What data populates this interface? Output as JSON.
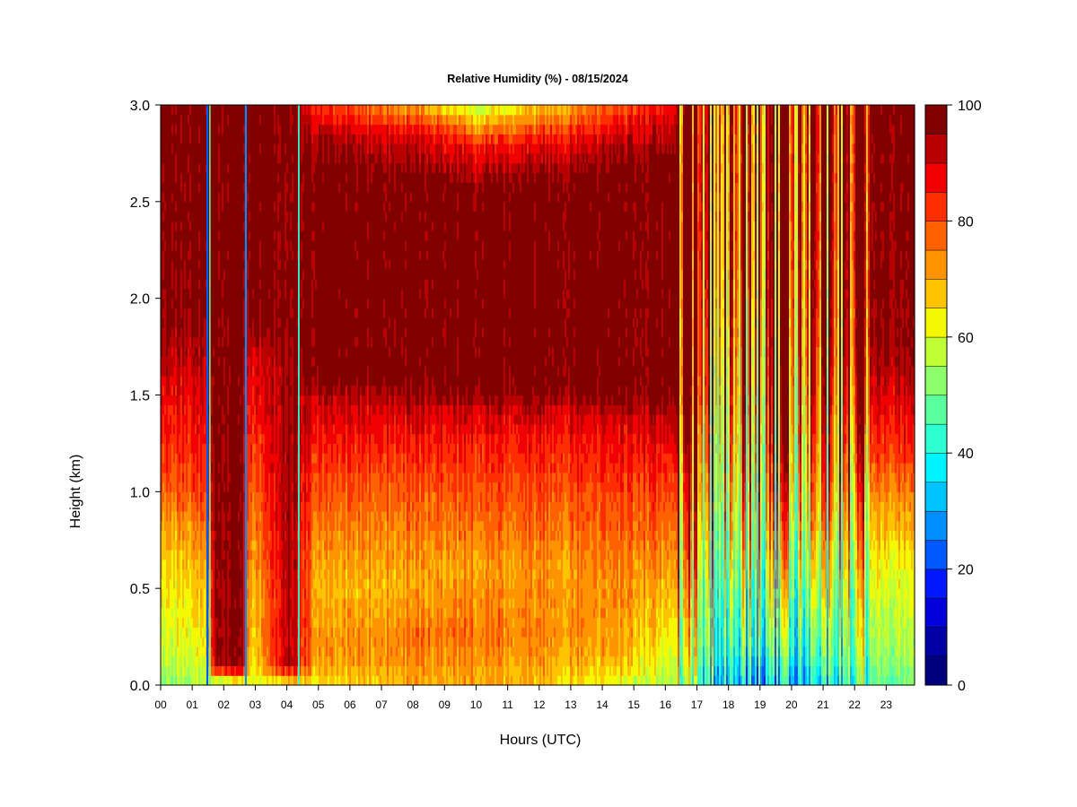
{
  "chart_data": {
    "type": "heatmap",
    "title": "Relative Humidity (%) - 08/15/2024",
    "xlabel": "Hours (UTC)",
    "ylabel": "Height (km)",
    "x_tick_labels": [
      "00",
      "01",
      "02",
      "03",
      "04",
      "05",
      "06",
      "07",
      "08",
      "09",
      "10",
      "11",
      "12",
      "13",
      "14",
      "15",
      "16",
      "17",
      "18",
      "19",
      "20",
      "21",
      "22",
      "23"
    ],
    "y_tick_labels": [
      "0.0",
      "0.5",
      "1.0",
      "1.5",
      "2.0",
      "2.5",
      "3.0"
    ],
    "y_ticks": [
      0.0,
      0.5,
      1.0,
      1.5,
      2.0,
      2.5,
      3.0
    ],
    "xlim": [
      0,
      23.9
    ],
    "ylim": [
      0.0,
      3.0
    ],
    "colorbar": {
      "tick_labels": [
        "0",
        "20",
        "40",
        "60",
        "80",
        "100"
      ],
      "ticks": [
        0,
        20,
        40,
        60,
        80,
        100
      ],
      "range": [
        0,
        100
      ],
      "levels": 20,
      "colors": [
        "#00007f",
        "#0000a5",
        "#0000db",
        "#0018ff",
        "#0058ff",
        "#0090ff",
        "#00c4ff",
        "#00f4ff",
        "#2cffd2",
        "#5aff9e",
        "#8cff6a",
        "#c0ff36",
        "#f4f800",
        "#ffc400",
        "#ff9400",
        "#ff6000",
        "#ff2e00",
        "#f00000",
        "#b80000",
        "#800000"
      ]
    },
    "z_profile_keypoints": [
      {
        "hour": 0.0,
        "profile": [
          [
            0.0,
            52
          ],
          [
            0.1,
            57
          ],
          [
            0.4,
            62
          ],
          [
            0.8,
            70
          ],
          [
            1.05,
            80
          ],
          [
            1.5,
            88
          ],
          [
            1.8,
            97
          ],
          [
            3.0,
            99
          ]
        ]
      },
      {
        "hour": 1.4,
        "profile": [
          [
            0.0,
            55
          ],
          [
            0.2,
            62
          ],
          [
            0.6,
            68
          ],
          [
            0.8,
            75
          ],
          [
            1.05,
            82
          ],
          [
            1.6,
            90
          ],
          [
            2.0,
            98
          ],
          [
            3.0,
            99
          ]
        ]
      },
      {
        "hour": 1.8,
        "profile": [
          [
            0.0,
            48
          ],
          [
            0.1,
            97
          ],
          [
            3.0,
            99
          ]
        ]
      },
      {
        "hour": 2.6,
        "profile": [
          [
            0.0,
            55
          ],
          [
            0.1,
            94
          ],
          [
            3.0,
            99
          ]
        ]
      },
      {
        "hour": 2.9,
        "profile": [
          [
            0.0,
            58
          ],
          [
            0.2,
            64
          ],
          [
            0.5,
            66
          ],
          [
            0.9,
            74
          ],
          [
            1.3,
            82
          ],
          [
            1.75,
            90
          ],
          [
            1.9,
            98
          ],
          [
            3.0,
            99
          ]
        ]
      },
      {
        "hour": 4.05,
        "profile": [
          [
            0.0,
            60
          ],
          [
            0.1,
            95
          ],
          [
            3.0,
            99
          ]
        ]
      },
      {
        "hour": 5.0,
        "profile": [
          [
            0.0,
            64
          ],
          [
            0.15,
            72
          ],
          [
            0.5,
            68
          ],
          [
            0.9,
            76
          ],
          [
            1.2,
            83
          ],
          [
            1.5,
            92
          ],
          [
            1.6,
            99
          ],
          [
            2.65,
            99
          ],
          [
            2.85,
            93
          ],
          [
            3.0,
            82
          ]
        ]
      },
      {
        "hour": 8.5,
        "profile": [
          [
            0.0,
            70
          ],
          [
            0.25,
            76
          ],
          [
            0.55,
            70
          ],
          [
            0.95,
            78
          ],
          [
            1.25,
            85
          ],
          [
            1.45,
            92
          ],
          [
            1.55,
            99
          ],
          [
            2.6,
            99
          ],
          [
            2.85,
            88
          ],
          [
            3.0,
            68
          ]
        ]
      },
      {
        "hour": 10.0,
        "profile": [
          [
            0.0,
            70
          ],
          [
            0.25,
            76
          ],
          [
            0.6,
            72
          ],
          [
            1.0,
            80
          ],
          [
            1.3,
            86
          ],
          [
            1.45,
            93
          ],
          [
            1.55,
            99
          ],
          [
            2.55,
            99
          ],
          [
            2.8,
            85
          ],
          [
            3.0,
            56
          ]
        ]
      },
      {
        "hour": 12.0,
        "profile": [
          [
            0.0,
            68
          ],
          [
            0.25,
            74
          ],
          [
            0.6,
            72
          ],
          [
            1.0,
            80
          ],
          [
            1.3,
            86
          ],
          [
            1.45,
            93
          ],
          [
            1.55,
            99
          ],
          [
            2.6,
            99
          ],
          [
            2.8,
            87
          ],
          [
            3.0,
            66
          ]
        ]
      },
      {
        "hour": 14.5,
        "profile": [
          [
            0.0,
            60
          ],
          [
            0.15,
            70
          ],
          [
            0.6,
            74
          ],
          [
            1.05,
            82
          ],
          [
            1.4,
            90
          ],
          [
            1.5,
            99
          ],
          [
            2.65,
            99
          ],
          [
            2.85,
            90
          ],
          [
            3.0,
            78
          ]
        ]
      },
      {
        "hour": 16.3,
        "profile": [
          [
            0.0,
            56
          ],
          [
            0.2,
            62
          ],
          [
            0.6,
            72
          ],
          [
            1.1,
            84
          ],
          [
            1.4,
            95
          ],
          [
            1.5,
            99
          ],
          [
            2.7,
            99
          ],
          [
            3.0,
            88
          ]
        ]
      },
      {
        "hour": 17.5,
        "profile": [
          [
            0.0,
            40
          ],
          [
            0.2,
            50
          ],
          [
            0.6,
            60
          ],
          [
            1.0,
            70
          ],
          [
            1.5,
            80
          ],
          [
            2.2,
            88
          ],
          [
            3.0,
            90
          ]
        ]
      },
      {
        "hour": 19.5,
        "profile": [
          [
            0.0,
            30
          ],
          [
            0.2,
            42
          ],
          [
            0.6,
            56
          ],
          [
            1.0,
            68
          ],
          [
            1.5,
            78
          ],
          [
            2.2,
            86
          ],
          [
            3.0,
            88
          ]
        ]
      },
      {
        "hour": 21.0,
        "profile": [
          [
            0.0,
            38
          ],
          [
            0.2,
            48
          ],
          [
            0.6,
            60
          ],
          [
            1.0,
            72
          ],
          [
            1.6,
            82
          ],
          [
            2.3,
            88
          ],
          [
            3.0,
            90
          ]
        ]
      },
      {
        "hour": 22.5,
        "profile": [
          [
            0.0,
            48
          ],
          [
            0.2,
            55
          ],
          [
            0.6,
            62
          ],
          [
            1.0,
            74
          ],
          [
            1.35,
            86
          ],
          [
            1.8,
            97
          ],
          [
            3.0,
            99
          ]
        ]
      },
      {
        "hour": 23.9,
        "profile": [
          [
            0.0,
            50
          ],
          [
            0.2,
            56
          ],
          [
            0.6,
            62
          ],
          [
            0.9,
            72
          ],
          [
            1.2,
            84
          ],
          [
            1.7,
            96
          ],
          [
            3.0,
            99
          ]
        ]
      }
    ],
    "spikes": [
      {
        "hour": 1.48,
        "width": 0.06,
        "value": 20
      },
      {
        "hour": 1.56,
        "width": 0.04,
        "value": 45
      },
      {
        "hour": 2.7,
        "width": 0.06,
        "value": 28
      },
      {
        "hour": 4.38,
        "width": 0.05,
        "value": 42
      }
    ],
    "chaotic_region_hours": [
      16.4,
      22.5
    ],
    "grid": false,
    "colorbar_placement": "right"
  }
}
